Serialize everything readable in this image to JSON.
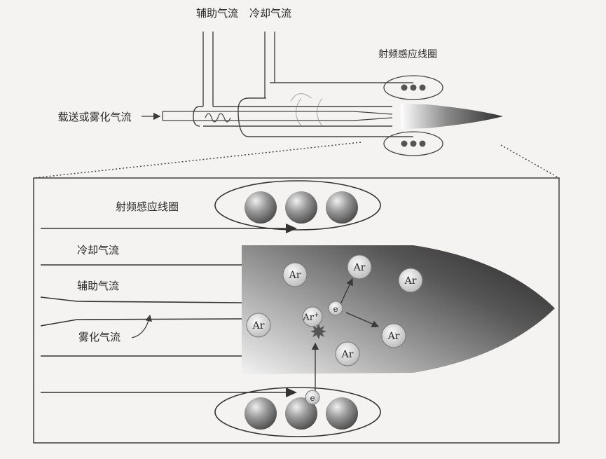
{
  "top": {
    "aux_label": "辅助气流",
    "cool_label": "冷却气流",
    "rf_label": "射频感应线圈",
    "carrier_label": "载送或雾化气流"
  },
  "inset": {
    "rf_label": "射频感应线圈",
    "cool_label": "冷却气流",
    "aux_label": "辅助气流",
    "neb_label": "雾化气流",
    "ion_label": "Ar",
    "ion_sup": "+",
    "electron_label": "e",
    "atoms": [
      "Ar",
      "Ar",
      "Ar",
      "Ar",
      "Ar",
      "Ar"
    ]
  },
  "colors": {
    "line": "#3a3a3a",
    "plasma_dark": "#3c3c3c",
    "plasma_light": "#e6e6e6",
    "sphere": "#6e6e6e"
  }
}
